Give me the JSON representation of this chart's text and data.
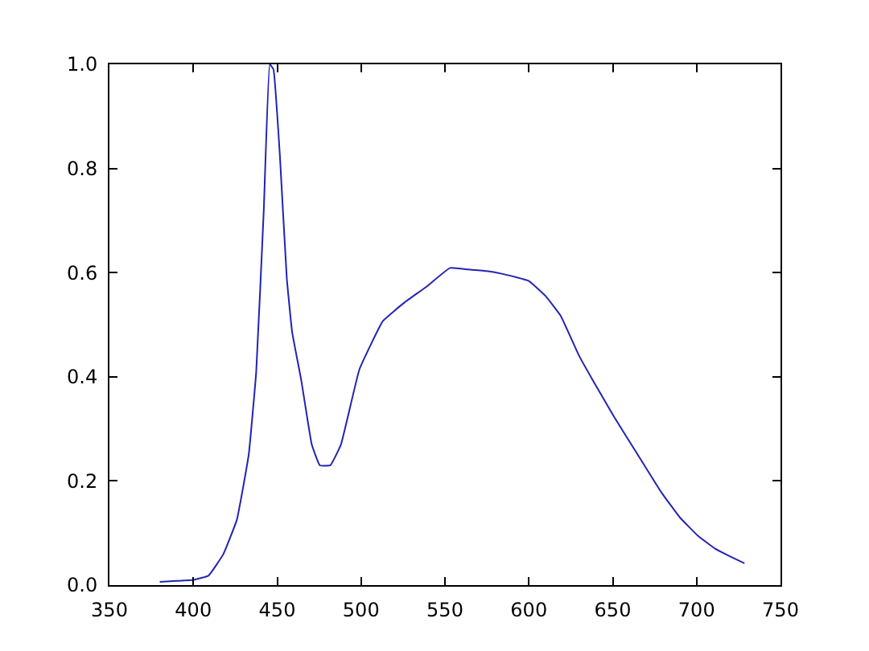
{
  "chart_data": {
    "type": "line",
    "xlim": [
      350,
      750
    ],
    "ylim": [
      0,
      1.0
    ],
    "xticks": [
      350,
      400,
      450,
      500,
      550,
      600,
      650,
      700,
      750
    ],
    "yticks": [
      {
        "value": 0,
        "label": "0.0"
      },
      {
        "value": 0.2,
        "label": "0.2"
      },
      {
        "value": 0.4,
        "label": "0.4"
      },
      {
        "value": 0.6,
        "label": "0.6"
      },
      {
        "value": 0.8,
        "label": "0.8"
      },
      {
        "value": 1.0,
        "label": "1.0"
      }
    ],
    "legend": false,
    "marker": "none",
    "line_style": "solid",
    "series": [
      {
        "color": "#2323b4",
        "x": [
          380,
          390,
          400,
          409,
          418,
          426,
          433,
          437.5,
          442,
          445.6,
          447.8,
          451.6,
          455.7,
          458.9,
          464.3,
          470.6,
          475.4,
          481.7,
          488,
          499,
          513,
          526,
          539,
          553,
          564,
          575,
          585,
          600,
          610,
          619,
          630,
          638,
          651,
          665,
          679,
          690,
          701,
          711,
          720,
          728.5
        ],
        "values": [
          0.006,
          0.008,
          0.01,
          0.018,
          0.06,
          0.126,
          0.25,
          0.41,
          0.72,
          1.0,
          0.99,
          0.825,
          0.59,
          0.486,
          0.394,
          0.27,
          0.23,
          0.23,
          0.27,
          0.414,
          0.507,
          0.543,
          0.573,
          0.609,
          0.606,
          0.603,
          0.597,
          0.584,
          0.555,
          0.517,
          0.44,
          0.394,
          0.322,
          0.25,
          0.178,
          0.13,
          0.094,
          0.07,
          0.055,
          0.042
        ]
      }
    ]
  }
}
